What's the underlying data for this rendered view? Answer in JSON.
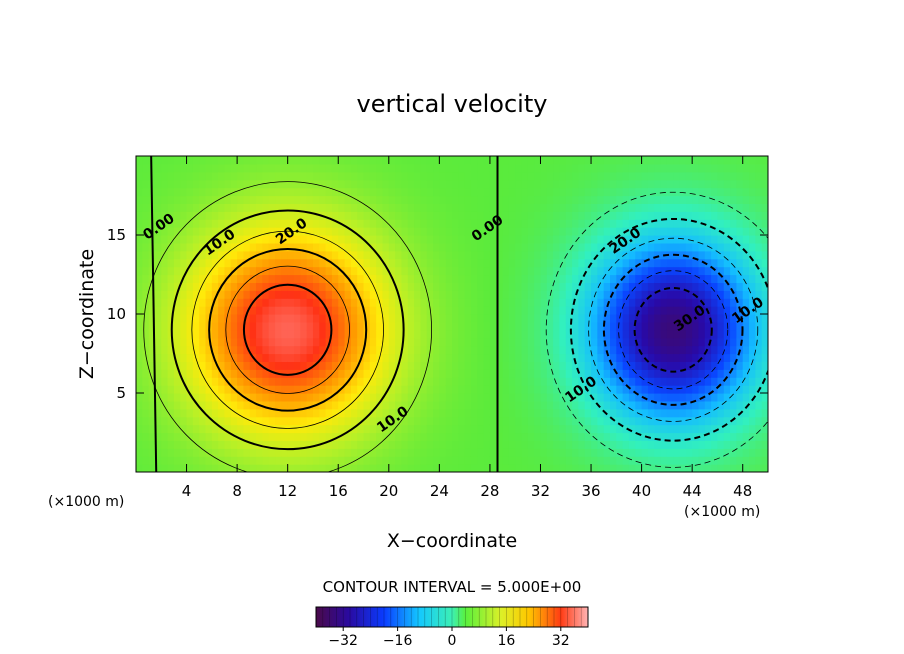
{
  "chart_data": {
    "type": "contour",
    "title": "vertical velocity",
    "xlabel": "X−coordinate",
    "ylabel": "Z−coordinate",
    "x_units": "(×1000 m)",
    "z_units": "(×1000 m)",
    "xlim": [
      0,
      50
    ],
    "ylim": [
      0,
      20
    ],
    "x_ticks": [
      4,
      8,
      12,
      16,
      20,
      24,
      28,
      32,
      36,
      40,
      44,
      48
    ],
    "y_ticks": [
      5,
      10,
      15
    ],
    "contour_interval_label": "CONTOUR INTERVAL = 5.000E+00",
    "contour_interval": 5.0,
    "field": {
      "updraft": {
        "center_x": 12,
        "center_z": 9,
        "max": 36
      },
      "downdraft": {
        "center_x": 42.5,
        "center_z": 9,
        "min": -36
      }
    },
    "contour_labels": [
      {
        "text": "0.00",
        "x": 2.0,
        "z": 15.3
      },
      {
        "text": "10.0",
        "x": 6.8,
        "z": 14.3
      },
      {
        "text": "20.0",
        "x": 12.5,
        "z": 15.0
      },
      {
        "text": "10.0",
        "x": 20.5,
        "z": 3.1
      },
      {
        "text": "0.00",
        "x": 28.0,
        "z": 15.2
      },
      {
        "text": "20.0",
        "x": 38.9,
        "z": 14.4
      },
      {
        "text": "30.0",
        "x": 44.0,
        "z": 9.5
      },
      {
        "text": "10.0",
        "x": 48.6,
        "z": 10.0
      },
      {
        "text": "10.0",
        "x": 35.4,
        "z": 5.0
      }
    ],
    "colorbar": {
      "range": [
        -40,
        40
      ],
      "ticks": [
        -32,
        -16,
        0,
        16,
        32
      ],
      "tick_labels": [
        "−32",
        "−16",
        "0",
        "16",
        "32"
      ]
    }
  }
}
